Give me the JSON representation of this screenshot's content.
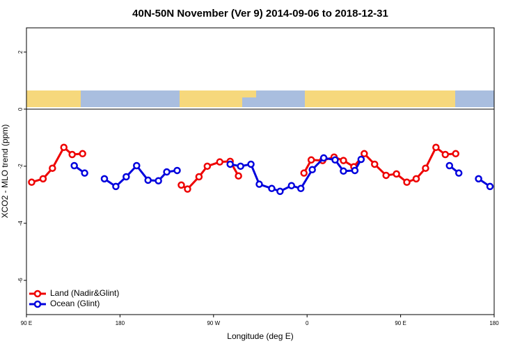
{
  "chart_data": {
    "type": "line",
    "title": "40N-50N November (Ver 9)   2014-09-06 to 2018-12-31",
    "xlabel": "Longitude (deg E)",
    "ylabel": "XCO2 - MLO trend (ppm)",
    "xlim": [
      90,
      540
    ],
    "ylim": [
      -7.2,
      2.85
    ],
    "xticks": [
      {
        "value": 90,
        "label": "90 E"
      },
      180,
      {
        "value": 270,
        "label": "90 W"
      },
      {
        "value": 360,
        "label": "0"
      },
      {
        "value": 450,
        "label": "90 E"
      },
      {
        "value": 540,
        "label": "180"
      }
    ],
    "yticks": [
      -6,
      -4,
      -2,
      0,
      2
    ],
    "legend": "bottom-left",
    "series": [
      {
        "name": "Land (Nadir&Glint)",
        "color": "#ee0000",
        "x": [
          95,
          106,
          115,
          126,
          134,
          144,
          null,
          239,
          245,
          256,
          264,
          276,
          286,
          294,
          null,
          357,
          364,
          375,
          386,
          395,
          405,
          415,
          425,
          436,
          446,
          456,
          465,
          474,
          484,
          493,
          503
        ],
        "values": [
          -2.56,
          -2.44,
          -2.07,
          -1.34,
          -1.59,
          -1.56,
          null,
          -2.66,
          -2.8,
          -2.37,
          -2.0,
          -1.85,
          -1.83,
          -2.34,
          null,
          -2.24,
          -1.78,
          -1.8,
          -1.68,
          -1.8,
          -2.02,
          -1.56,
          -1.93,
          -2.32,
          -2.27,
          -2.56,
          -2.44,
          -2.07,
          -1.34,
          -1.59,
          -1.56
        ]
      },
      {
        "name": "Ocean (Glint)",
        "color": "#0000dd",
        "x": [
          136,
          146,
          null,
          165,
          176,
          186,
          196,
          207,
          217,
          225,
          235,
          null,
          286,
          296,
          306,
          314,
          326,
          334,
          345,
          354,
          365,
          376,
          387,
          395,
          406,
          412,
          null,
          497,
          506,
          null,
          525,
          536
        ],
        "values": [
          -1.98,
          -2.24,
          null,
          -2.44,
          -2.71,
          -2.37,
          -1.98,
          -2.49,
          -2.51,
          -2.2,
          -2.15,
          null,
          -1.93,
          -2.0,
          -1.93,
          -2.63,
          -2.78,
          -2.88,
          -2.68,
          -2.78,
          -2.12,
          -1.71,
          -1.78,
          -2.17,
          -2.15,
          -1.76,
          null,
          -1.98,
          -2.24,
          null,
          -2.44,
          -2.71
        ]
      }
    ]
  }
}
